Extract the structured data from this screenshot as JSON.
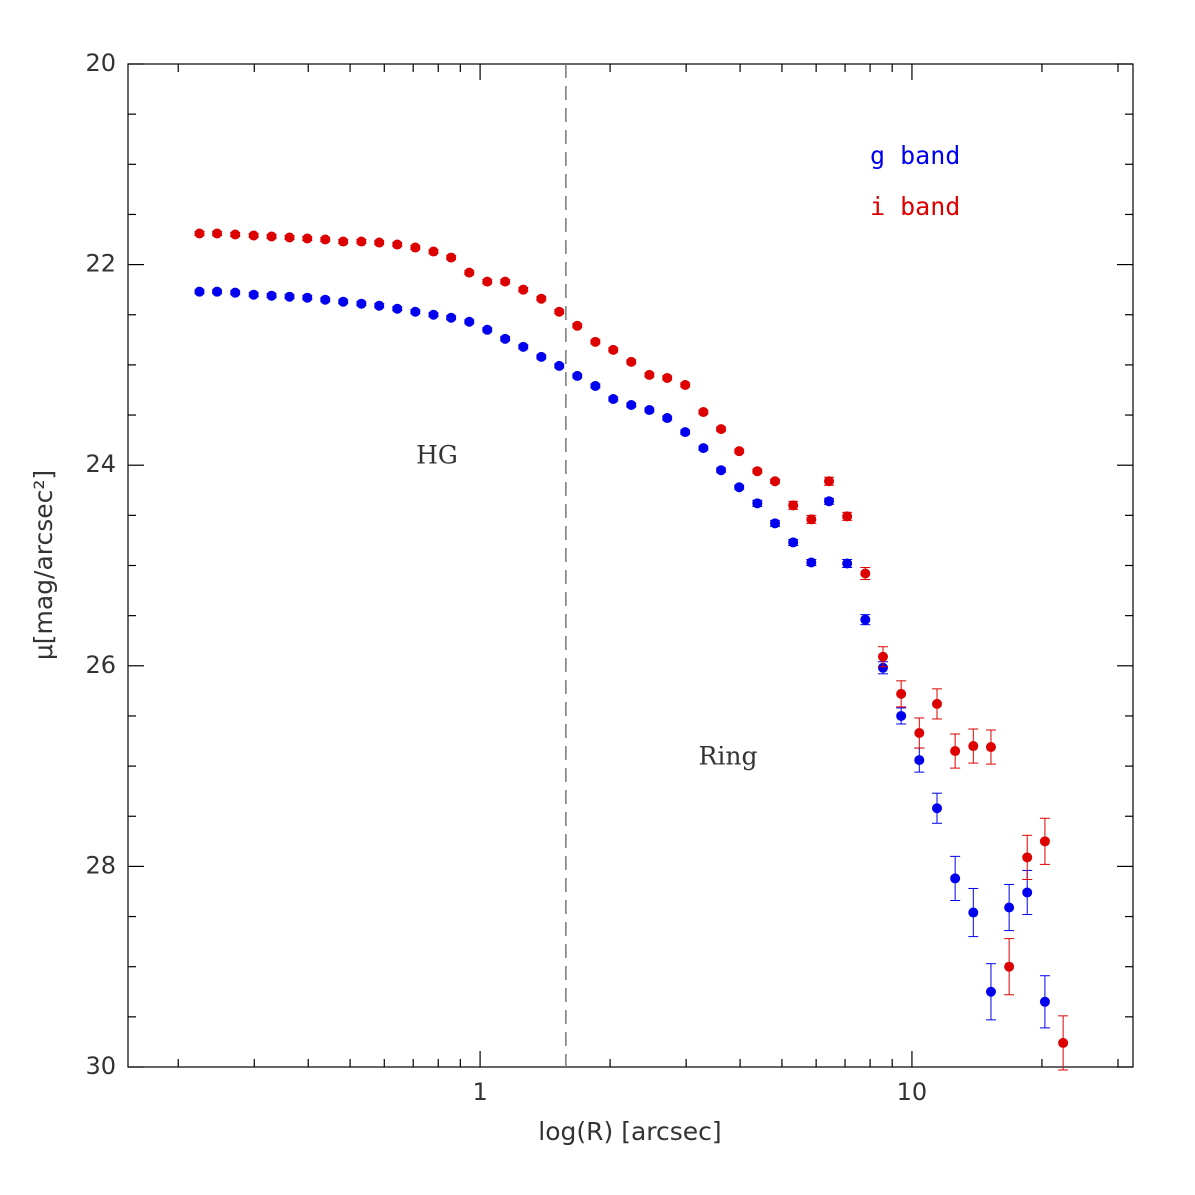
{
  "chart_data": {
    "type": "scatter",
    "xlabel": "log(R) [arcsec]",
    "ylabel": "μ[mag/arcsec²]",
    "xscale": "log",
    "yinverted": true,
    "xlim": [
      0.153,
      32.5
    ],
    "ylim": [
      20,
      30
    ],
    "xticks": [
      1,
      10
    ],
    "xminorticks": [
      0.2,
      0.3,
      0.4,
      0.5,
      0.6,
      0.7,
      0.8,
      0.9,
      2,
      3,
      4,
      5,
      6,
      7,
      8,
      9,
      20,
      30
    ],
    "yticks": [
      20,
      22,
      24,
      26,
      28,
      30
    ],
    "yminorticks": [
      20.5,
      21,
      21.5,
      22.5,
      23,
      23.5,
      24.5,
      25,
      25.5,
      26.5,
      27,
      27.5,
      28.5,
      29,
      29.5
    ],
    "vline": 1.58,
    "annotations": [
      "HG",
      "Ring"
    ],
    "x": [
      0.224,
      0.246,
      0.271,
      0.299,
      0.329,
      0.362,
      0.398,
      0.438,
      0.482,
      0.531,
      0.584,
      0.643,
      0.708,
      0.78,
      0.857,
      0.944,
      1.039,
      1.143,
      1.259,
      1.386,
      1.525,
      1.679,
      1.849,
      2.034,
      2.239,
      2.466,
      2.712,
      2.985,
      3.289,
      3.614,
      3.981,
      4.385,
      4.819,
      5.309,
      5.848,
      6.427,
      7.079,
      7.798,
      8.57,
      9.441,
      10.4,
      11.43,
      12.59,
      13.87,
      15.24,
      16.79,
      18.49,
      20.32,
      22.39
    ],
    "series": [
      {
        "name": "g band",
        "color": "#0000ee",
        "values": [
          22.27,
          22.27,
          22.28,
          22.3,
          22.31,
          22.32,
          22.33,
          22.35,
          22.37,
          22.39,
          22.41,
          22.44,
          22.47,
          22.5,
          22.53,
          22.57,
          22.65,
          22.74,
          22.82,
          22.92,
          23.01,
          23.11,
          23.21,
          23.34,
          23.4,
          23.45,
          23.53,
          23.67,
          23.83,
          24.05,
          24.22,
          24.38,
          24.58,
          24.77,
          24.97,
          24.36,
          24.98,
          25.54,
          26.02,
          26.5,
          26.94,
          27.42,
          28.12,
          28.46,
          29.25,
          28.41,
          28.26,
          29.35,
          null
        ],
        "errors": [
          0.02,
          0.02,
          0.02,
          0.02,
          0.02,
          0.02,
          0.02,
          0.02,
          0.02,
          0.02,
          0.02,
          0.02,
          0.02,
          0.02,
          0.02,
          0.02,
          0.02,
          0.02,
          0.02,
          0.02,
          0.02,
          0.02,
          0.02,
          0.02,
          0.02,
          0.02,
          0.02,
          0.02,
          0.02,
          0.02,
          0.02,
          0.03,
          0.03,
          0.03,
          0.03,
          0.03,
          0.04,
          0.05,
          0.06,
          0.08,
          0.12,
          0.15,
          0.22,
          0.24,
          0.28,
          0.23,
          0.22,
          0.26,
          null
        ]
      },
      {
        "name": "i band",
        "color": "#dd0000",
        "values": [
          21.69,
          21.69,
          21.7,
          21.71,
          21.72,
          21.73,
          21.74,
          21.75,
          21.77,
          21.77,
          21.78,
          21.8,
          21.83,
          21.87,
          21.93,
          22.08,
          22.17,
          22.17,
          22.25,
          22.34,
          22.47,
          22.61,
          22.77,
          22.85,
          22.97,
          23.1,
          23.13,
          23.2,
          23.47,
          23.64,
          23.86,
          24.06,
          24.16,
          24.4,
          24.54,
          24.16,
          24.51,
          25.08,
          25.91,
          26.28,
          26.67,
          26.38,
          26.85,
          26.8,
          26.81,
          29.0,
          27.91,
          27.75,
          29.76
        ],
        "errors": [
          0.02,
          0.02,
          0.02,
          0.02,
          0.02,
          0.02,
          0.02,
          0.02,
          0.02,
          0.02,
          0.02,
          0.02,
          0.02,
          0.02,
          0.02,
          0.02,
          0.02,
          0.02,
          0.02,
          0.02,
          0.02,
          0.02,
          0.02,
          0.02,
          0.02,
          0.02,
          0.02,
          0.02,
          0.02,
          0.02,
          0.02,
          0.02,
          0.02,
          0.04,
          0.04,
          0.04,
          0.04,
          0.06,
          0.1,
          0.13,
          0.15,
          0.15,
          0.17,
          0.17,
          0.17,
          0.28,
          0.22,
          0.23,
          0.27
        ]
      }
    ]
  }
}
